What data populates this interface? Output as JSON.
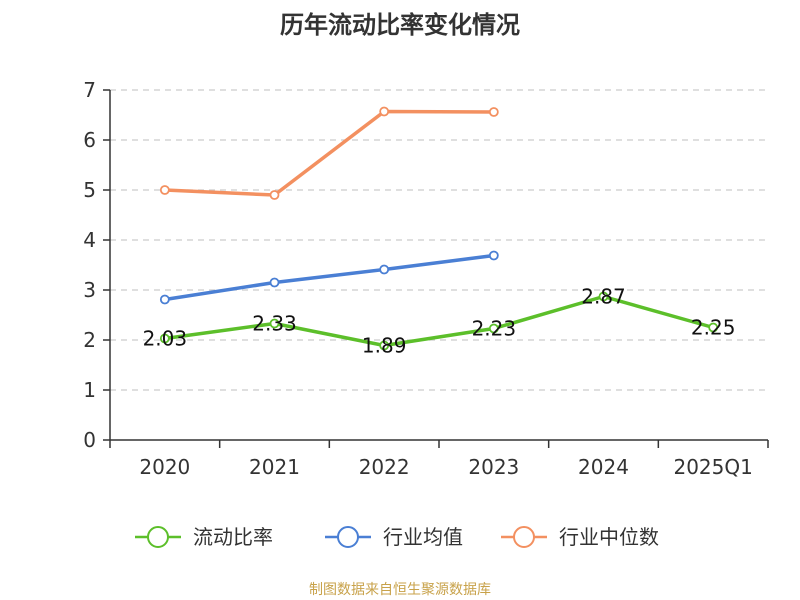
{
  "chart_data": {
    "type": "line",
    "title": "历年流动比率变化情况",
    "xlabel": "",
    "ylabel": "",
    "categories": [
      "2020",
      "2021",
      "2022",
      "2023",
      "2024",
      "2025Q1"
    ],
    "ylim": [
      0,
      7
    ],
    "yticks": [
      0,
      1,
      2,
      3,
      4,
      5,
      6,
      7
    ],
    "grid": true,
    "legend_position": "bottom",
    "series": [
      {
        "name": "流动比率",
        "color": "#5cbf2a",
        "values": [
          2.03,
          2.33,
          1.89,
          2.23,
          2.87,
          2.25
        ],
        "labels": [
          "2.03",
          "2.33",
          "1.89",
          "2.23",
          "2.87",
          "2.25"
        ]
      },
      {
        "name": "行业均值",
        "color": "#4a7fd4",
        "values": [
          2.81,
          3.15,
          3.41,
          3.69,
          null,
          null
        ]
      },
      {
        "name": "行业中位数",
        "color": "#f39060",
        "values": [
          5.0,
          4.9,
          6.57,
          6.56,
          null,
          null
        ]
      }
    ]
  },
  "footer": {
    "source": "制图数据来自恒生聚源数据库"
  }
}
